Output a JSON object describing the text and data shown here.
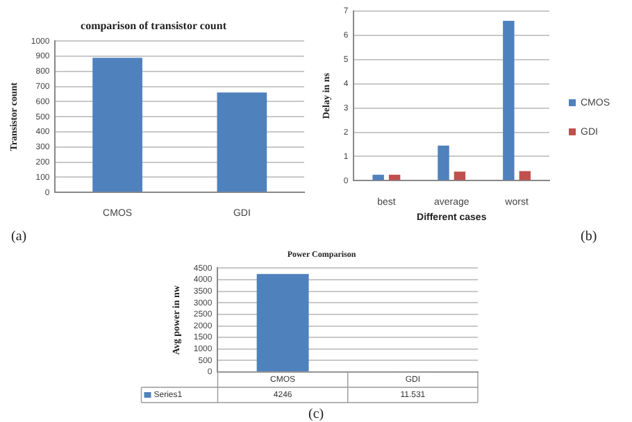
{
  "chart_data": [
    {
      "type": "bar",
      "title": "comparison of transistor count",
      "ylabel": "Transistor count",
      "categories": [
        "CMOS",
        "GDI"
      ],
      "values": [
        890,
        660
      ],
      "color": "#4f81bd",
      "ylim": [
        0,
        1000
      ],
      "yticks": [
        0,
        100,
        200,
        300,
        400,
        500,
        600,
        700,
        800,
        900,
        1000
      ],
      "grid": "y",
      "legend": false,
      "annotations": [
        "(a)"
      ]
    },
    {
      "type": "bar",
      "xlabel": "Different cases",
      "ylabel": "Delay in ns",
      "categories": [
        "best",
        "average",
        "worst"
      ],
      "series": [
        {
          "name": "CMOS",
          "color": "#4f81bd",
          "values": [
            0.25,
            1.45,
            6.6
          ]
        },
        {
          "name": "GDI",
          "color": "#c0504d",
          "values": [
            0.25,
            0.38,
            0.4
          ]
        }
      ],
      "ylim": [
        0,
        7
      ],
      "yticks": [
        0,
        1,
        2,
        3,
        4,
        5,
        6,
        7
      ],
      "grid": "y",
      "legend": "right",
      "annotations": [
        "(b)"
      ]
    },
    {
      "type": "bar",
      "title": "Power Comparison",
      "ylabel": "Avg power in nw",
      "categories": [
        "CMOS",
        "GDI"
      ],
      "series": [
        {
          "name": "Series1",
          "color": "#4f81bd",
          "values": [
            4246,
            11.531
          ],
          "value_labels": [
            "4246",
            "11.531"
          ]
        }
      ],
      "ylim": [
        0,
        4500
      ],
      "yticks": [
        0,
        500,
        1000,
        1500,
        2000,
        2500,
        3000,
        3500,
        4000,
        4500
      ],
      "grid": "y",
      "legend": "bottom left",
      "annotations": [
        "(c)"
      ]
    }
  ]
}
